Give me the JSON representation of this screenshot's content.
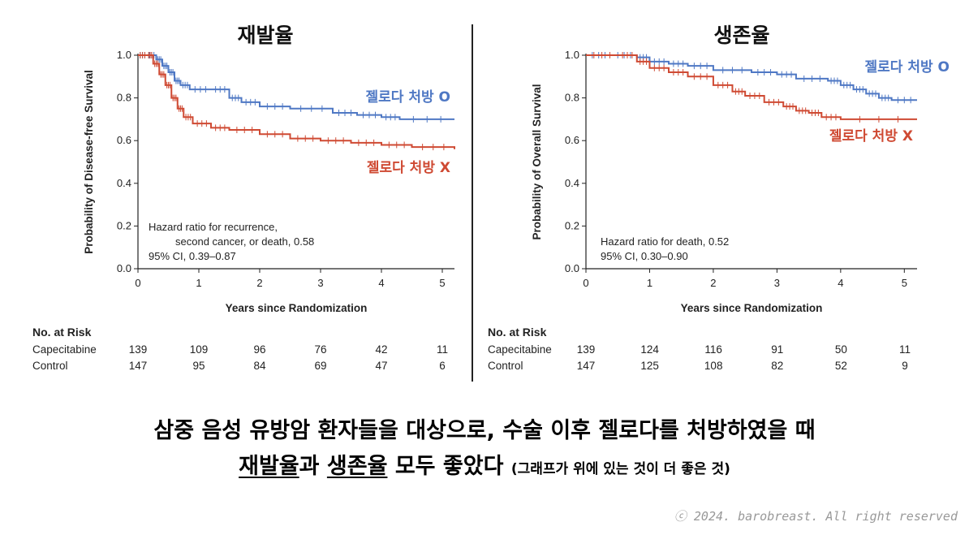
{
  "divider": true,
  "headline": {
    "line1": "삼중 음성 유방암 환자들을 대상으로, 수술 이후 젤로다를 처방하였을 때",
    "line2_part1": "재발율",
    "line2_part2": "과 ",
    "line2_part3": "생존율",
    "line2_part4": " 모두 좋았다 ",
    "line2_note": "(그래프가 위에 있는 것이 더 좋은 것)"
  },
  "copyright": "ⓒ 2024. barobreast. All right reserved",
  "colors": {
    "blue": "#4f78c4",
    "red": "#cf4a33"
  },
  "chart_data": [
    {
      "type": "line",
      "title": "재발율",
      "xlabel": "Years since Randomization",
      "ylabel": "Probability of Disease-free Survival",
      "xlim": [
        0,
        5.2
      ],
      "ylim": [
        0,
        1.0
      ],
      "xticks": [
        "0",
        "1",
        "2",
        "3",
        "4",
        "5"
      ],
      "yticks": [
        "0.0",
        "0.2",
        "0.4",
        "0.6",
        "0.8",
        "1.0"
      ],
      "annotation": [
        "Hazard ratio for recurrence,",
        "second cancer, or death, 0.58",
        "95% CI, 0.39–0.87"
      ],
      "series": [
        {
          "name": "젤로다 처방 O",
          "color": "#4f78c4",
          "points": [
            [
              0,
              1.0
            ],
            [
              0.15,
              1.0
            ],
            [
              0.3,
              0.98
            ],
            [
              0.4,
              0.95
            ],
            [
              0.5,
              0.92
            ],
            [
              0.6,
              0.88
            ],
            [
              0.7,
              0.86
            ],
            [
              0.85,
              0.84
            ],
            [
              1.2,
              0.84
            ],
            [
              1.5,
              0.8
            ],
            [
              1.7,
              0.78
            ],
            [
              2.0,
              0.76
            ],
            [
              2.5,
              0.75
            ],
            [
              3.2,
              0.73
            ],
            [
              3.6,
              0.72
            ],
            [
              4.0,
              0.71
            ],
            [
              4.3,
              0.7
            ],
            [
              5.2,
              0.7
            ]
          ]
        },
        {
          "name": "젤로다 처방 X",
          "color": "#cf4a33",
          "points": [
            [
              0,
              1.0
            ],
            [
              0.15,
              1.0
            ],
            [
              0.25,
              0.96
            ],
            [
              0.35,
              0.91
            ],
            [
              0.45,
              0.86
            ],
            [
              0.55,
              0.8
            ],
            [
              0.65,
              0.75
            ],
            [
              0.75,
              0.71
            ],
            [
              0.9,
              0.68
            ],
            [
              1.2,
              0.66
            ],
            [
              1.5,
              0.65
            ],
            [
              2.0,
              0.63
            ],
            [
              2.5,
              0.61
            ],
            [
              3.0,
              0.6
            ],
            [
              3.5,
              0.59
            ],
            [
              4.0,
              0.58
            ],
            [
              4.5,
              0.57
            ],
            [
              5.2,
              0.56
            ]
          ]
        }
      ],
      "risk_table": {
        "title": "No. at Risk",
        "rows": [
          {
            "label": "Capecitabine",
            "values": [
              "139",
              "109",
              "96",
              "76",
              "42",
              "11"
            ]
          },
          {
            "label": "Control",
            "values": [
              "147",
              "95",
              "84",
              "69",
              "47",
              "6"
            ]
          }
        ]
      }
    },
    {
      "type": "line",
      "title": "생존율",
      "xlabel": "Years since Randomization",
      "ylabel": "Probability of Overall Survival",
      "xlim": [
        0,
        5.2
      ],
      "ylim": [
        0,
        1.0
      ],
      "xticks": [
        "0",
        "1",
        "2",
        "3",
        "4",
        "5"
      ],
      "yticks": [
        "0.0",
        "0.2",
        "0.4",
        "0.6",
        "0.8",
        "1.0"
      ],
      "annotation": [
        "Hazard ratio for death, 0.52",
        "95% CI, 0.30–0.90"
      ],
      "series": [
        {
          "name": "젤로다 처방 O",
          "color": "#4f78c4",
          "points": [
            [
              0,
              1.0
            ],
            [
              0.4,
              1.0
            ],
            [
              0.8,
              0.99
            ],
            [
              1.0,
              0.97
            ],
            [
              1.3,
              0.96
            ],
            [
              1.6,
              0.95
            ],
            [
              2.0,
              0.93
            ],
            [
              2.6,
              0.92
            ],
            [
              3.0,
              0.91
            ],
            [
              3.3,
              0.89
            ],
            [
              3.8,
              0.88
            ],
            [
              4.0,
              0.86
            ],
            [
              4.2,
              0.84
            ],
            [
              4.4,
              0.82
            ],
            [
              4.6,
              0.8
            ],
            [
              4.8,
              0.79
            ],
            [
              5.2,
              0.79
            ]
          ]
        },
        {
          "name": "젤로다 처방 X",
          "color": "#cf4a33",
          "points": [
            [
              0,
              1.0
            ],
            [
              0.5,
              1.0
            ],
            [
              0.8,
              0.97
            ],
            [
              1.0,
              0.94
            ],
            [
              1.3,
              0.92
            ],
            [
              1.6,
              0.9
            ],
            [
              2.0,
              0.86
            ],
            [
              2.3,
              0.83
            ],
            [
              2.5,
              0.81
            ],
            [
              2.8,
              0.78
            ],
            [
              3.1,
              0.76
            ],
            [
              3.3,
              0.74
            ],
            [
              3.5,
              0.73
            ],
            [
              3.7,
              0.71
            ],
            [
              4.0,
              0.7
            ],
            [
              5.2,
              0.7
            ]
          ]
        }
      ],
      "risk_table": {
        "title": "No. at Risk",
        "rows": [
          {
            "label": "Capecitabine",
            "values": [
              "139",
              "124",
              "116",
              "91",
              "50",
              "11"
            ]
          },
          {
            "label": "Control",
            "values": [
              "147",
              "125",
              "108",
              "82",
              "52",
              "9"
            ]
          }
        ]
      }
    }
  ]
}
